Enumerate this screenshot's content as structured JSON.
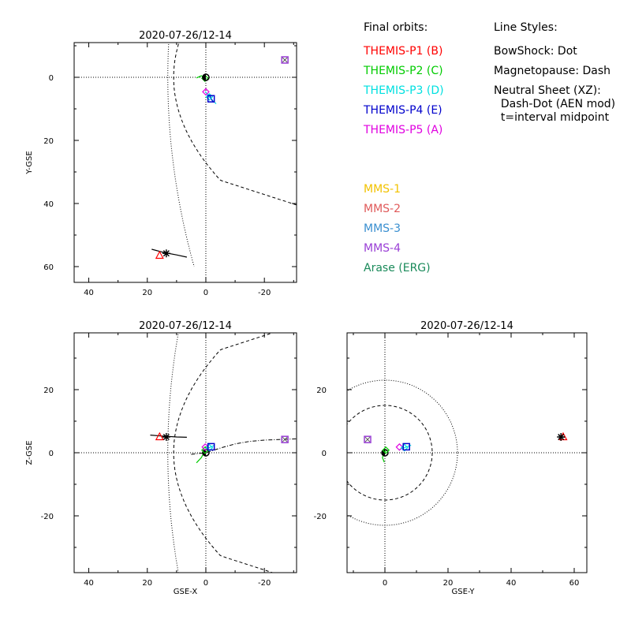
{
  "legend": {
    "orbits_title": "Final orbits:",
    "themis": [
      {
        "label": "THEMIS-P1 (B)",
        "color": "#ff0000"
      },
      {
        "label": "THEMIS-P2 (C)",
        "color": "#00cc00"
      },
      {
        "label": "THEMIS-P3 (D)",
        "color": "#00e0e0"
      },
      {
        "label": "THEMIS-P4 (E)",
        "color": "#0000cc"
      },
      {
        "label": "THEMIS-P5 (A)",
        "color": "#e000e0"
      }
    ],
    "mms": [
      {
        "label": "MMS-1",
        "color": "#f2c200"
      },
      {
        "label": "MMS-2",
        "color": "#e05a5a"
      },
      {
        "label": "MMS-3",
        "color": "#3a8fd0"
      },
      {
        "label": "MMS-4",
        "color": "#9a3fd6"
      },
      {
        "label": "Arase (ERG)",
        "color": "#1a8a5a"
      }
    ],
    "styles_title": "Line Styles:",
    "styles": [
      "BowShock: Dot",
      "Magnetopause: Dash",
      "Neutral Sheet (XZ):",
      "  Dash-Dot (AEN mod)",
      "  t=interval midpoint"
    ]
  },
  "chart_data": [
    {
      "id": "xy",
      "type": "scatter",
      "title": "2020-07-26/12-14",
      "xlabel": "",
      "ylabel": "Y-GSE",
      "xlim": [
        45,
        -31
      ],
      "ylim": [
        65,
        -11
      ],
      "xticks": [
        40,
        20,
        0,
        -20
      ],
      "yticks": [
        0,
        20,
        40,
        60
      ],
      "bow_shock": {
        "nose": 13,
        "flare": 0.0025
      },
      "magnetopause": {
        "nose": 11,
        "flare": 0.015
      },
      "markers": [
        {
          "sc": "THEMIS-P1",
          "shape": "triangle",
          "x": 15.8,
          "y": 56.5,
          "color": "#ff0000"
        },
        {
          "sc": "Arase",
          "shape": "star",
          "x": 13.5,
          "y": 55.8,
          "color": "#000000"
        },
        {
          "sc": "THEMIS-P2",
          "shape": "diamond",
          "x": 0.3,
          "y": 0.3,
          "color": "#00cc00"
        },
        {
          "sc": "Earth",
          "shape": "circle",
          "x": 0.0,
          "y": 0.0,
          "color": "#000000"
        },
        {
          "sc": "THEMIS-P5",
          "shape": "diamond",
          "x": 0.0,
          "y": 4.6,
          "color": "#e000e0"
        },
        {
          "sc": "THEMIS-P3",
          "shape": "diamond",
          "x": -1.2,
          "y": 6.2,
          "color": "#00e0e0"
        },
        {
          "sc": "THEMIS-P4",
          "shape": "square",
          "x": -1.8,
          "y": 6.8,
          "color": "#0000cc"
        },
        {
          "sc": "MMS-4",
          "shape": "square",
          "x": -27.0,
          "y": -5.5,
          "color": "#9a3fd6"
        },
        {
          "sc": "MMS-1",
          "shape": "x",
          "x": -27.0,
          "y": -5.5,
          "color": "#555555"
        }
      ],
      "tracks": [
        {
          "color": "#000000",
          "points": [
            [
              18.5,
              54.5
            ],
            [
              14,
              55.6
            ],
            [
              10,
              56.3
            ],
            [
              6.5,
              57.0
            ]
          ]
        },
        {
          "color": "#00cc00",
          "points": [
            [
              3.2,
              0.2
            ],
            [
              1.5,
              -0.5
            ],
            [
              0.3,
              0.3
            ]
          ]
        },
        {
          "color": "#00e0e0",
          "points": [
            [
              0.2,
              4.5
            ],
            [
              -1.2,
              6.2
            ],
            [
              -2.5,
              7.5
            ],
            [
              -3.5,
              8.4
            ]
          ]
        },
        {
          "color": "#0000cc",
          "points": [
            [
              -1.3,
              5.5
            ],
            [
              -1.8,
              6.8
            ],
            [
              -2.6,
              8.0
            ]
          ]
        }
      ]
    },
    {
      "id": "xz",
      "type": "scatter",
      "title": "2020-07-26/12-14",
      "xlabel": "GSE-X",
      "ylabel": "Z-GSE",
      "xlim": [
        45,
        -31
      ],
      "ylim": [
        -38,
        38
      ],
      "xticks": [
        40,
        20,
        0,
        -20
      ],
      "yticks": [
        20,
        0,
        -20
      ],
      "bow_shock": {
        "nose": 13,
        "flare": 0.0025
      },
      "magnetopause": {
        "nose": 11,
        "flare": 0.015
      },
      "neutral_sheet": [
        [
          5,
          -0.5
        ],
        [
          0,
          0
        ],
        [
          -5,
          1.5
        ],
        [
          -10,
          2.8
        ],
        [
          -15,
          3.6
        ],
        [
          -20,
          4.0
        ],
        [
          -25,
          4.2
        ],
        [
          -31,
          4.4
        ]
      ],
      "markers": [
        {
          "sc": "THEMIS-P1",
          "shape": "triangle",
          "x": 15.8,
          "y": 5.0,
          "color": "#ff0000"
        },
        {
          "sc": "Arase",
          "shape": "star",
          "x": 13.5,
          "y": 5.0,
          "color": "#000000"
        },
        {
          "sc": "Earth",
          "shape": "circle",
          "x": 0.0,
          "y": 0.0,
          "color": "#000000"
        },
        {
          "sc": "THEMIS-P2",
          "shape": "diamond",
          "x": 0.3,
          "y": 0.8,
          "color": "#00cc00"
        },
        {
          "sc": "THEMIS-P5",
          "shape": "diamond",
          "x": 0.2,
          "y": 1.8,
          "color": "#e000e0"
        },
        {
          "sc": "THEMIS-P3",
          "shape": "diamond",
          "x": -1.2,
          "y": 1.6,
          "color": "#00e0e0"
        },
        {
          "sc": "THEMIS-P4",
          "shape": "square",
          "x": -1.8,
          "y": 1.9,
          "color": "#0000cc"
        },
        {
          "sc": "MMS-4",
          "shape": "square",
          "x": -27.0,
          "y": 4.2,
          "color": "#9a3fd6"
        },
        {
          "sc": "MMS-1",
          "shape": "x",
          "x": -27.0,
          "y": 4.2,
          "color": "#555555"
        }
      ],
      "tracks": [
        {
          "color": "#000000",
          "points": [
            [
              19,
              5.6
            ],
            [
              15,
              5.3
            ],
            [
              10,
              5.0
            ],
            [
              6.5,
              4.9
            ]
          ]
        },
        {
          "color": "#00cc00",
          "points": [
            [
              3.2,
              -3.2
            ],
            [
              1.5,
              -1.5
            ],
            [
              0.3,
              0.8
            ]
          ]
        },
        {
          "color": "#00e0e0",
          "points": [
            [
              0.2,
              1.0
            ],
            [
              -1.2,
              1.6
            ],
            [
              -3.0,
              2.4
            ]
          ]
        }
      ]
    },
    {
      "id": "yz",
      "type": "scatter",
      "title": "2020-07-26/12-14",
      "xlabel": "GSE-Y",
      "ylabel": "",
      "xlim": [
        -12,
        64
      ],
      "ylim": [
        -38,
        38
      ],
      "xticks": [
        0,
        20,
        40,
        60
      ],
      "yticks": [
        20,
        0,
        -20
      ],
      "bow_shock_radius": 23,
      "magnetopause_radius": 15,
      "markers": [
        {
          "sc": "MMS-4",
          "shape": "square",
          "x": -5.5,
          "y": 4.2,
          "color": "#9a3fd6"
        },
        {
          "sc": "MMS-1",
          "shape": "x",
          "x": -5.5,
          "y": 4.2,
          "color": "#555555"
        },
        {
          "sc": "Earth",
          "shape": "circle",
          "x": 0.0,
          "y": 0.0,
          "color": "#000000"
        },
        {
          "sc": "THEMIS-P2",
          "shape": "diamond",
          "x": 0.3,
          "y": 0.8,
          "color": "#00cc00"
        },
        {
          "sc": "THEMIS-P5",
          "shape": "diamond",
          "x": 4.6,
          "y": 1.8,
          "color": "#e000e0"
        },
        {
          "sc": "THEMIS-P3",
          "shape": "diamond",
          "x": 6.2,
          "y": 1.6,
          "color": "#00e0e0"
        },
        {
          "sc": "THEMIS-P4",
          "shape": "square",
          "x": 6.8,
          "y": 1.9,
          "color": "#0000cc"
        },
        {
          "sc": "THEMIS-P1",
          "shape": "triangle",
          "x": 56.5,
          "y": 5.0,
          "color": "#ff0000"
        },
        {
          "sc": "Arase",
          "shape": "star",
          "x": 55.8,
          "y": 5.0,
          "color": "#000000"
        }
      ],
      "tracks": [
        {
          "color": "#00cc00",
          "points": [
            [
              0.3,
              0.8
            ],
            [
              -0.8,
              -1.5
            ],
            [
              -0.2,
              -3.0
            ]
          ]
        },
        {
          "color": "#00e0e0",
          "points": [
            [
              4.6,
              1.0
            ],
            [
              6.2,
              1.6
            ],
            [
              8.3,
              2.4
            ]
          ]
        },
        {
          "color": "#000000",
          "points": [
            [
              55.0,
              5.6
            ],
            [
              56.3,
              5.0
            ],
            [
              57.0,
              4.9
            ]
          ]
        }
      ]
    }
  ]
}
